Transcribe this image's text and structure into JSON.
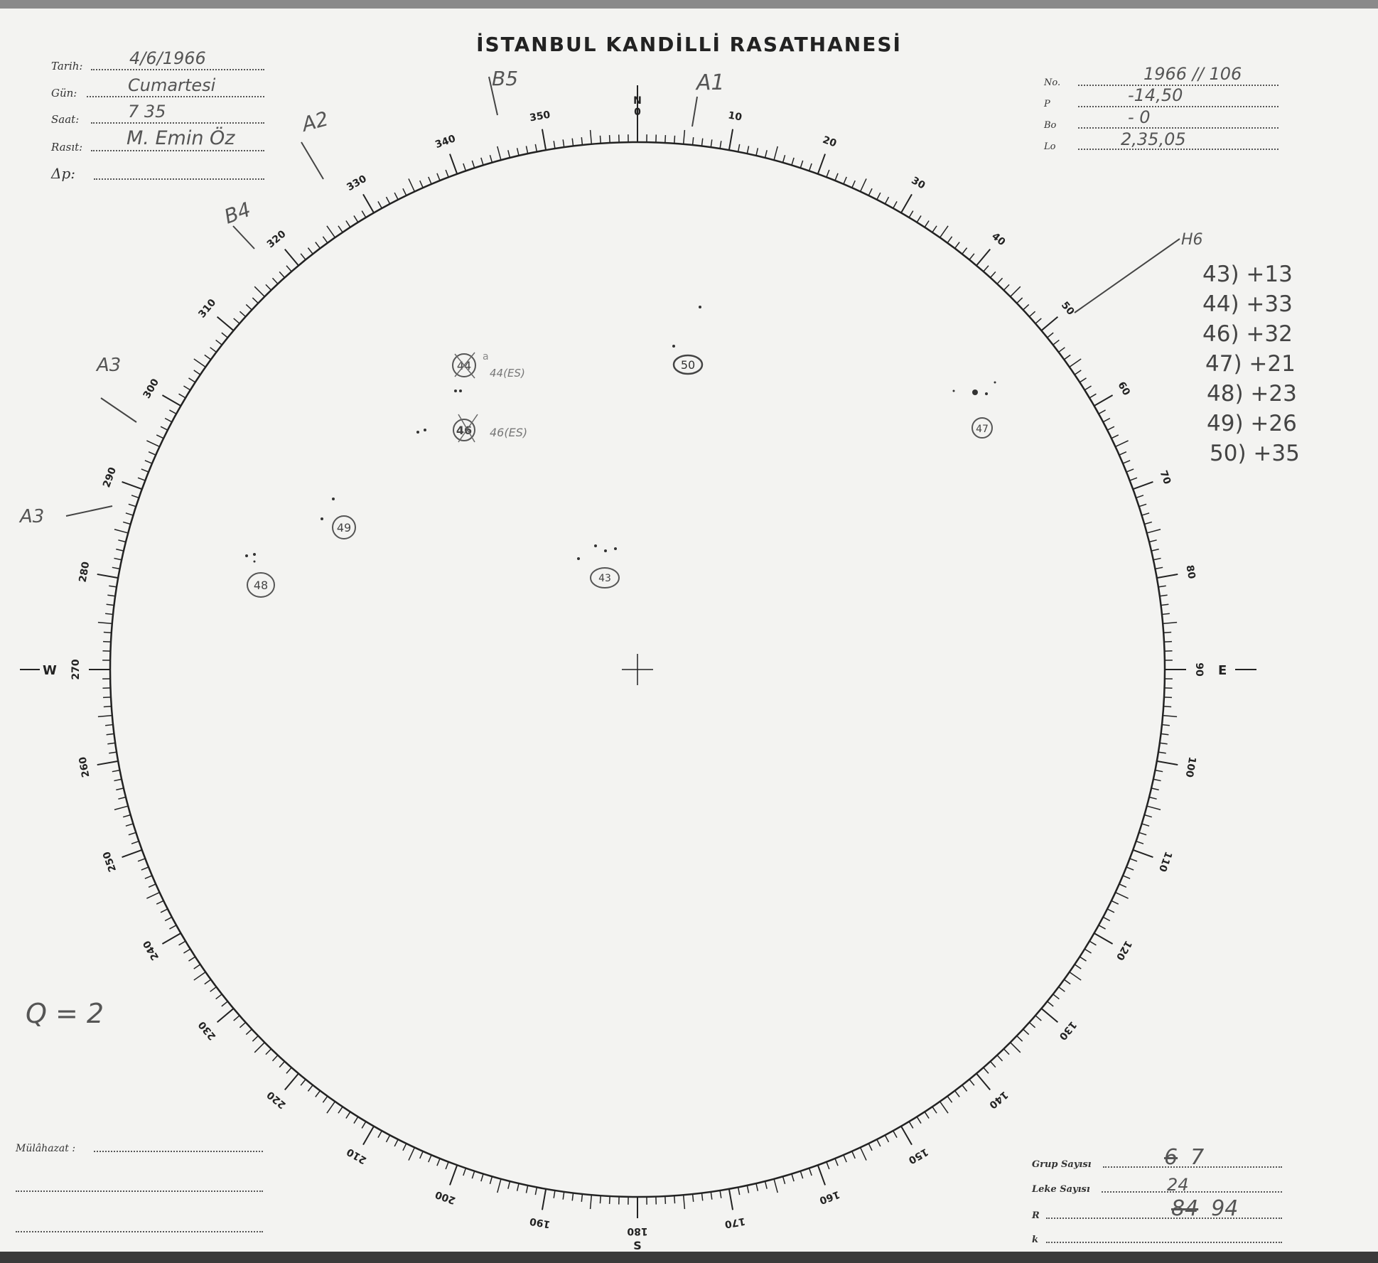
{
  "title": "İSTANBUL KANDİLLİ RASATHANESİ",
  "left_fields": [
    {
      "label": "Tarih:",
      "value": "4/6/1966"
    },
    {
      "label": "Gün:",
      "value": "Cumartesi"
    },
    {
      "label": "Saat:",
      "value": "7 35"
    },
    {
      "label": "Rasıt:",
      "value": "M. Emin Öz"
    },
    {
      "label": "Δp:",
      "value": ""
    }
  ],
  "right_fields": [
    {
      "label": "No.",
      "value": "1966 // 106"
    },
    {
      "label": "P",
      "value": "-14,50"
    },
    {
      "label": "Bo",
      "value": "- 0"
    },
    {
      "label": "Lo",
      "value": "2,35,05"
    }
  ],
  "dial": {
    "labels": [
      "0",
      "10",
      "20",
      "30",
      "40",
      "50",
      "60",
      "70",
      "80",
      "90",
      "100",
      "110",
      "120",
      "130",
      "140",
      "150",
      "160",
      "170",
      "180",
      "190",
      "200",
      "210",
      "220",
      "230",
      "240",
      "250",
      "260",
      "270",
      "280",
      "290",
      "300",
      "310",
      "320",
      "330",
      "340",
      "350"
    ],
    "north": "N",
    "east": "E",
    "south": "S",
    "west": "W"
  },
  "sunspot_groups": [
    {
      "id": "50",
      "struck": false
    },
    {
      "id": "44",
      "struck": true,
      "note": "44(ES)",
      "suffix": "a"
    },
    {
      "id": "46",
      "struck": true,
      "note": "46(ES)"
    },
    {
      "id": "47",
      "struck": false
    },
    {
      "id": "49",
      "struck": false
    },
    {
      "id": "48",
      "struck": false
    },
    {
      "id": "43",
      "struck": false
    }
  ],
  "limb_annotations": [
    "B5",
    "A1",
    "A2",
    "B4",
    "A3",
    "A3",
    "H6"
  ],
  "latitude_notes": [
    "43) +13",
    "44) +33",
    "46) +32",
    "47) +21",
    "48) +23",
    "49) +26",
    "50) +35"
  ],
  "quality": "Q = 2",
  "remarks_label": "Mülâhazat :",
  "bottom_fields": [
    {
      "label": "Grup Sayısı",
      "struck": "6",
      "value": "7"
    },
    {
      "label": "Leke Sayısı",
      "struck": "",
      "value": "24"
    },
    {
      "label": "R",
      "struck": "84",
      "value": "94"
    },
    {
      "label": "k",
      "struck": "",
      "value": ""
    }
  ]
}
